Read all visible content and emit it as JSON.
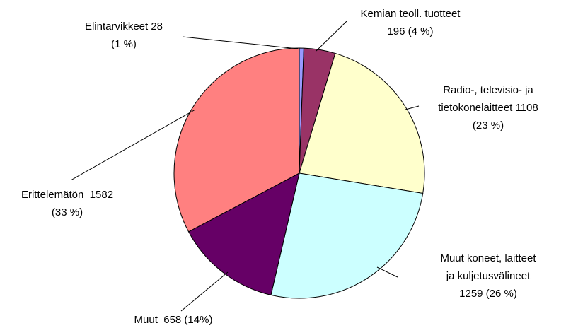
{
  "chart_data": {
    "type": "pie",
    "labels": [
      [
        "Elintarvikkeet 28",
        "(1 %)"
      ],
      [
        "Kemian teoll. tuotteet",
        "196 (4 %)"
      ],
      [
        "Radio-, televisio- ja",
        "tietokonelaitteet 1108",
        "(23 %)"
      ],
      [
        "Muut koneet, laitteet",
        "ja kuljetusvälineet",
        "1259 (26 %)"
      ],
      [
        "Muut  658 (14%)"
      ],
      [
        "Erittelemätön  1582",
        "(33 %)"
      ]
    ],
    "values": [
      28,
      196,
      1108,
      1259,
      658,
      1582
    ],
    "colors": [
      "#9999ff",
      "#993366",
      "#ffffcc",
      "#ccffff",
      "#660066",
      "#ff8080"
    ]
  }
}
